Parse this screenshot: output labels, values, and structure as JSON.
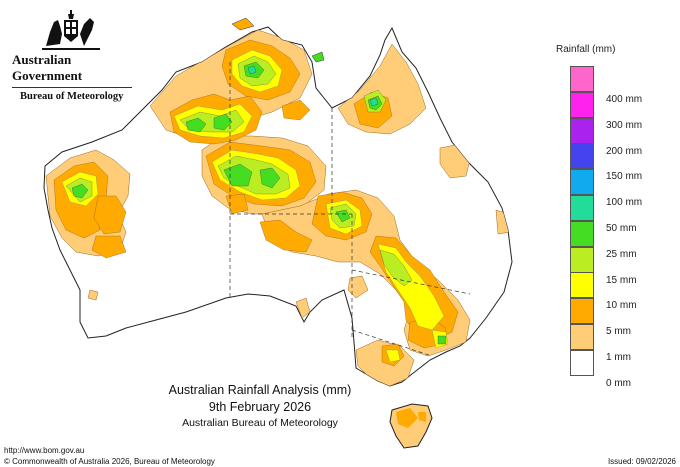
{
  "header": {
    "gov_title": "Australian Government",
    "agency": "Bureau of Meteorology",
    "crest_icon": "coat-of-arms-icon"
  },
  "caption": {
    "title": "Australian Rainfall Analysis (mm)",
    "date": "9th February 2026",
    "source": "Australian Bureau of Meteorology"
  },
  "legend": {
    "title": "Rainfall (mm)",
    "items": [
      {
        "label": "400 mm",
        "color": "#ff66cc"
      },
      {
        "label": "300 mm",
        "color": "#ff22ee"
      },
      {
        "label": "200 mm",
        "color": "#aa22ee"
      },
      {
        "label": "150 mm",
        "color": "#4444ee"
      },
      {
        "label": "100 mm",
        "color": "#11aaee"
      },
      {
        "label": "50 mm",
        "color": "#22dd99"
      },
      {
        "label": "25 mm",
        "color": "#44dd22"
      },
      {
        "label": "15 mm",
        "color": "#bbee22"
      },
      {
        "label": "10 mm",
        "color": "#ffff00"
      },
      {
        "label": "5 mm",
        "color": "#ffaa00"
      },
      {
        "label": "1 mm",
        "color": "#ffcc77"
      },
      {
        "label": "0 mm",
        "color": "#ffffff"
      }
    ]
  },
  "footer": {
    "url": "http://www.bom.gov.au",
    "copyright": "© Commonwealth of Australia 2026, Bureau of Meteorology",
    "issued": "Issued: 09/02/2026"
  }
}
